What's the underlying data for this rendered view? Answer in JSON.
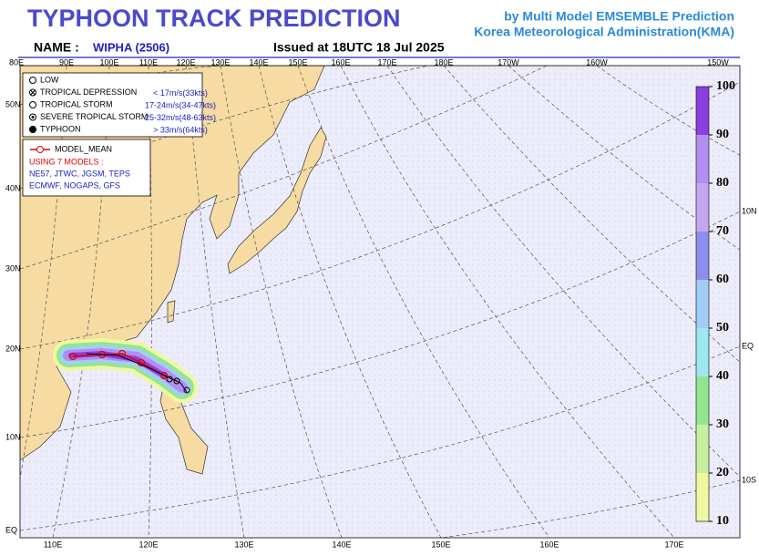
{
  "header": {
    "title": "TYPHOON  TRACK  PREDICTION",
    "subtitle_1": "by Multi Model EMSEMBLE Prediction",
    "subtitle_2": "Korea Meteorological Administration(KMA)",
    "name_label": "NAME :",
    "name": "WIPHA (2506)",
    "issued": "Issued at  18UTC 18 Jul 2025"
  },
  "map": {
    "top_labels": [
      "80E",
      "90E",
      "100E",
      "110E",
      "120E",
      "130E",
      "140E",
      "150E",
      "160E",
      "170E",
      "180E",
      "170W",
      "160W",
      "150W"
    ],
    "left_labels": [
      "50N",
      "40N",
      "30N",
      "20N",
      "10N",
      "EQ"
    ],
    "bottom_labels": [
      "110E",
      "120E",
      "130E",
      "140E",
      "150E",
      "160E",
      "170E"
    ],
    "right_labels": [
      "10N",
      "EQ",
      "10S"
    ]
  },
  "legend": {
    "intensity": [
      {
        "name": "LOW",
        "range": null
      },
      {
        "name": "TROPICAL DEPRESSION",
        "range": "< 17m/s(33kts)"
      },
      {
        "name": "TROPICAL STORM",
        "range": "17-24m/s(34-47kts)"
      },
      {
        "name": "SEVERE TROPICAL STORM",
        "range": "25-32m/s(48-63kts)"
      },
      {
        "name": "TYPHOON",
        "range": "> 33m/s(64kts)"
      }
    ],
    "mean": "MODEL_MEAN",
    "models_title": "USING 7 MODELS :",
    "models": [
      "NE57, JTWC, JGSM, TEPS",
      "ECMWF, NOGAPS, GFS"
    ]
  },
  "colorbar": {
    "ticks": [
      10,
      20,
      30,
      40,
      50,
      60,
      70,
      80,
      90,
      100
    ],
    "colors": [
      "#eef8a0",
      "#c6f0a0",
      "#92e690",
      "#9ee6f0",
      "#a2cef6",
      "#8e8ef0",
      "#c4a6f0",
      "#b28ef0",
      "#8c3ee0"
    ]
  }
}
